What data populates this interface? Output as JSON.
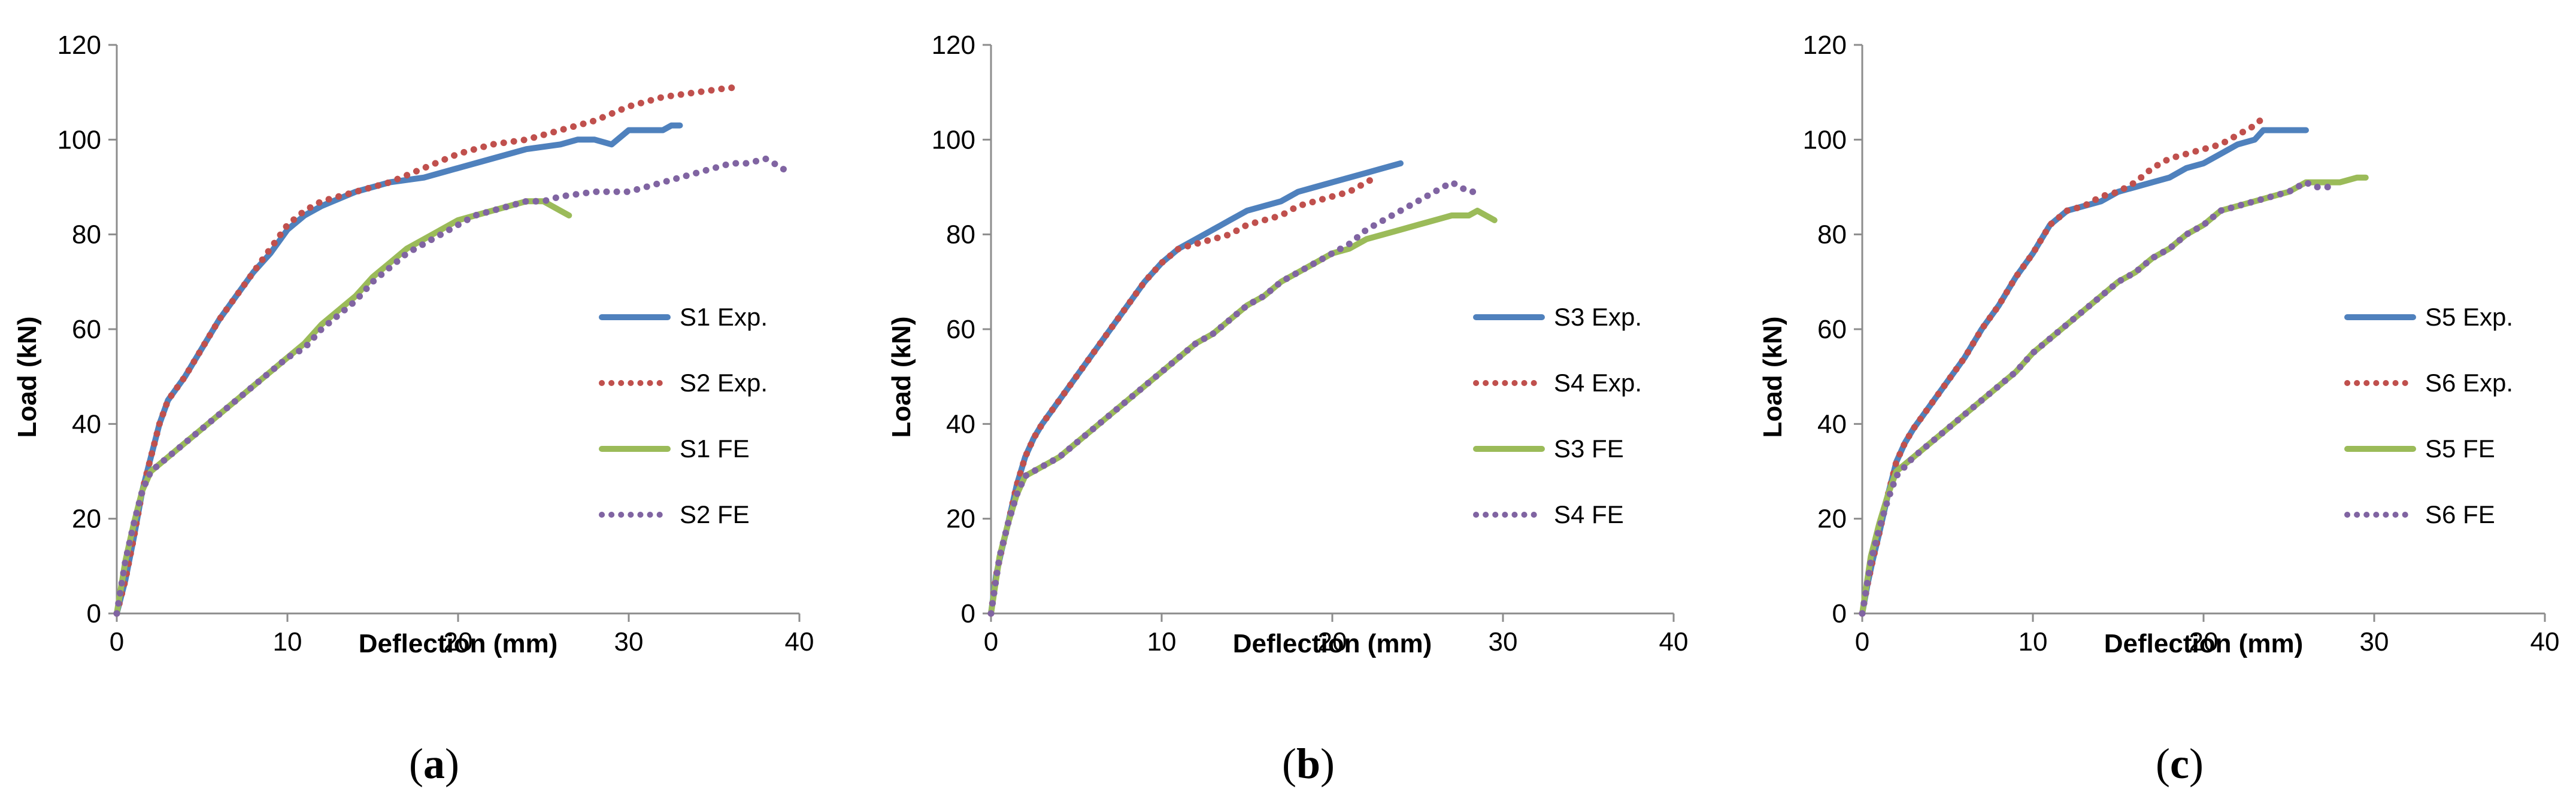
{
  "chart_data": [
    {
      "type": "line",
      "panel_label": "a",
      "xlabel": "Deflection (mm)",
      "ylabel": "Load (kN)",
      "xlim": [
        0,
        40
      ],
      "ylim": [
        0,
        120
      ],
      "xticks": [
        0,
        10,
        20,
        30,
        40
      ],
      "yticks": [
        0,
        20,
        40,
        60,
        80,
        100,
        120
      ],
      "grid": false,
      "legend_position": "right",
      "series": [
        {
          "name": "S1 Exp.",
          "style": "solid",
          "color": "#4F81BD",
          "x": [
            0,
            0.5,
            1,
            1.5,
            2,
            2.5,
            3,
            4,
            5,
            6,
            7,
            8,
            9,
            10,
            11,
            12,
            14,
            16,
            18,
            20,
            22,
            24,
            26,
            27,
            28,
            29,
            30,
            31,
            32,
            32.5,
            33
          ],
          "y": [
            0,
            7,
            16,
            26,
            33,
            40,
            45,
            50,
            56,
            62,
            67,
            72,
            76,
            81,
            84,
            86,
            89,
            91,
            92,
            94,
            96,
            98,
            99,
            100,
            100,
            99,
            102,
            102,
            102,
            103,
            103
          ]
        },
        {
          "name": "S2 Exp.",
          "style": "dotted",
          "color": "#C0504D",
          "x": [
            0,
            0.5,
            1,
            1.5,
            2,
            2.5,
            3,
            4,
            5,
            6,
            7,
            8,
            9,
            10,
            11,
            12,
            14,
            16,
            18,
            20,
            22,
            24,
            26,
            28,
            30,
            32,
            34,
            36,
            36.5
          ],
          "y": [
            0,
            7,
            16,
            26,
            33,
            40,
            45,
            50,
            56,
            62,
            67,
            72,
            77,
            82,
            85,
            87,
            89,
            91,
            94,
            97,
            99,
            100,
            102,
            104,
            107,
            109,
            110,
            111,
            110
          ]
        },
        {
          "name": "S1 FE",
          "style": "solid",
          "color": "#9BBB59",
          "x": [
            0,
            0.5,
            1,
            1.5,
            2,
            3,
            4,
            5,
            6,
            7,
            8,
            9,
            10,
            11,
            12,
            13,
            14,
            15,
            16,
            17,
            18,
            19,
            20,
            21,
            22,
            23,
            24,
            25,
            25.5,
            26,
            26.5
          ],
          "y": [
            0,
            11,
            19,
            26,
            30,
            33,
            36,
            39,
            42,
            45,
            48,
            51,
            54,
            57,
            61,
            64,
            67,
            71,
            74,
            77,
            79,
            81,
            83,
            84,
            85,
            86,
            87,
            87,
            86,
            85,
            84
          ]
        },
        {
          "name": "S2 FE",
          "style": "dotted",
          "color": "#8064A2",
          "x": [
            0,
            0.5,
            1,
            1.5,
            2,
            3,
            4,
            5,
            6,
            7,
            8,
            9,
            10,
            11,
            12,
            13,
            14,
            15,
            16,
            17,
            18,
            19,
            20,
            21,
            22,
            23,
            24,
            25,
            26,
            28,
            30,
            32,
            34,
            36,
            37,
            38,
            38.5,
            39,
            39.3
          ],
          "y": [
            0,
            11,
            19,
            26,
            30,
            33,
            36,
            39,
            42,
            45,
            48,
            51,
            54,
            56,
            60,
            63,
            66,
            70,
            73,
            76,
            78,
            80,
            82,
            84,
            85,
            86,
            87,
            87,
            88,
            89,
            89,
            91,
            93,
            95,
            95,
            96,
            95,
            94,
            93
          ]
        }
      ],
      "caption": {
        "open": "(",
        "letter": "a",
        "close": ")"
      }
    },
    {
      "type": "line",
      "panel_label": "b",
      "xlabel": "Deflection (mm)",
      "ylabel": "Load (kN)",
      "xlim": [
        0,
        40
      ],
      "ylim": [
        0,
        120
      ],
      "xticks": [
        0,
        10,
        20,
        30,
        40
      ],
      "yticks": [
        0,
        20,
        40,
        60,
        80,
        100,
        120
      ],
      "grid": false,
      "legend_position": "right",
      "series": [
        {
          "name": "S3 Exp.",
          "style": "solid",
          "color": "#4F81BD",
          "x": [
            0,
            0.3,
            0.6,
            1,
            1.5,
            2,
            2.5,
            3,
            4,
            5,
            6,
            7,
            8,
            9,
            10,
            11,
            12,
            13,
            14,
            15,
            16,
            17,
            18,
            19,
            20,
            21,
            22,
            23,
            24
          ],
          "y": [
            0,
            8,
            13,
            19,
            27,
            33,
            37,
            40,
            45,
            50,
            55,
            60,
            65,
            70,
            74,
            77,
            79,
            81,
            83,
            85,
            86,
            87,
            89,
            90,
            91,
            92,
            93,
            94,
            95
          ]
        },
        {
          "name": "S4 Exp.",
          "style": "dotted",
          "color": "#C0504D",
          "x": [
            0,
            0.3,
            0.6,
            1,
            1.5,
            2,
            2.5,
            3,
            4,
            5,
            6,
            7,
            8,
            9,
            10,
            11,
            12,
            13,
            14,
            15,
            16,
            17,
            18,
            19,
            20,
            21,
            22,
            22.5
          ],
          "y": [
            0,
            8,
            13,
            19,
            27,
            33,
            37,
            40,
            45,
            50,
            55,
            60,
            65,
            70,
            74,
            77,
            78,
            79,
            80,
            82,
            83,
            84,
            86,
            87,
            88,
            89,
            91,
            92
          ]
        },
        {
          "name": "S3 FE",
          "style": "solid",
          "color": "#9BBB59",
          "x": [
            0,
            0.5,
            1,
            1.5,
            2,
            3,
            4,
            5,
            6,
            7,
            8,
            9,
            10,
            11,
            12,
            13,
            14,
            15,
            16,
            17,
            18,
            19,
            20,
            21,
            22,
            23,
            24,
            25,
            26,
            27,
            28,
            28.5,
            29,
            29.5
          ],
          "y": [
            0,
            12,
            19,
            25,
            29,
            31,
            33,
            36,
            39,
            42,
            45,
            48,
            51,
            54,
            57,
            59,
            62,
            65,
            67,
            70,
            72,
            74,
            76,
            77,
            79,
            80,
            81,
            82,
            83,
            84,
            84,
            85,
            84,
            83
          ]
        },
        {
          "name": "S4 FE",
          "style": "dotted",
          "color": "#8064A2",
          "x": [
            0,
            0.5,
            1,
            1.5,
            2,
            3,
            4,
            5,
            6,
            7,
            8,
            9,
            10,
            11,
            12,
            13,
            14,
            15,
            16,
            17,
            18,
            19,
            20,
            21,
            22,
            23,
            24,
            25,
            26,
            27,
            27.5,
            28,
            28.5
          ],
          "y": [
            0,
            12,
            19,
            25,
            29,
            31,
            33,
            36,
            39,
            42,
            45,
            48,
            51,
            54,
            57,
            59,
            62,
            65,
            67,
            70,
            72,
            74,
            76,
            78,
            81,
            83,
            85,
            87,
            89,
            91,
            90,
            89,
            89
          ]
        }
      ],
      "caption": {
        "open": "(",
        "letter": "b",
        "close": ")"
      }
    },
    {
      "type": "line",
      "panel_label": "c",
      "xlabel": "Deflection (mm)",
      "ylabel": "Load (kN)",
      "xlim": [
        0,
        40
      ],
      "ylim": [
        0,
        120
      ],
      "xticks": [
        0,
        10,
        20,
        30,
        40
      ],
      "yticks": [
        0,
        20,
        40,
        60,
        80,
        100,
        120
      ],
      "grid": false,
      "legend_position": "right",
      "series": [
        {
          "name": "S5 Exp.",
          "style": "solid",
          "color": "#4F81BD",
          "x": [
            0,
            0.3,
            0.6,
            1,
            1.5,
            2,
            2.5,
            3,
            4,
            5,
            6,
            7,
            8,
            9,
            10,
            11,
            12,
            13,
            14,
            15,
            16,
            17,
            18,
            19,
            20,
            21,
            22,
            23,
            23.5,
            24,
            25,
            26
          ],
          "y": [
            0,
            6,
            11,
            17,
            25,
            32,
            36,
            39,
            44,
            49,
            54,
            60,
            65,
            71,
            76,
            82,
            85,
            86,
            87,
            89,
            90,
            91,
            92,
            94,
            95,
            97,
            99,
            100,
            102,
            102,
            102,
            102
          ]
        },
        {
          "name": "S6 Exp.",
          "style": "dotted",
          "color": "#C0504D",
          "x": [
            0,
            0.3,
            0.6,
            1,
            1.5,
            2,
            2.5,
            3,
            4,
            5,
            6,
            7,
            8,
            9,
            10,
            11,
            12,
            13,
            14,
            15,
            16,
            17,
            18,
            19,
            20,
            21,
            22,
            23,
            23.3
          ],
          "y": [
            0,
            6,
            11,
            17,
            25,
            32,
            36,
            39,
            44,
            49,
            54,
            60,
            65,
            71,
            76,
            82,
            85,
            86,
            88,
            89,
            91,
            94,
            96,
            97,
            98,
            99,
            101,
            103,
            104
          ]
        },
        {
          "name": "S5 FE",
          "style": "solid",
          "color": "#9BBB59",
          "x": [
            0,
            0.5,
            1,
            1.5,
            2,
            3,
            4,
            5,
            6,
            7,
            8,
            9,
            10,
            11,
            12,
            13,
            14,
            15,
            16,
            17,
            18,
            19,
            20,
            21,
            22,
            23,
            24,
            25,
            26,
            27,
            28,
            29,
            29.5
          ],
          "y": [
            0,
            12,
            19,
            25,
            30,
            33,
            36,
            39,
            42,
            45,
            48,
            51,
            55,
            58,
            61,
            64,
            67,
            70,
            72,
            75,
            77,
            80,
            82,
            85,
            86,
            87,
            88,
            89,
            91,
            91,
            91,
            92,
            92
          ]
        },
        {
          "name": "S6 FE",
          "style": "dotted",
          "color": "#8064A2",
          "x": [
            0,
            0.5,
            1,
            1.5,
            2,
            3,
            4,
            5,
            6,
            7,
            8,
            9,
            10,
            11,
            12,
            13,
            14,
            15,
            16,
            17,
            18,
            19,
            20,
            21,
            22,
            23,
            24,
            25,
            26,
            26.5,
            27,
            27.5
          ],
          "y": [
            0,
            11,
            18,
            24,
            29,
            33,
            36,
            39,
            42,
            45,
            48,
            51,
            55,
            58,
            61,
            64,
            67,
            70,
            72,
            75,
            77,
            80,
            82,
            85,
            86,
            87,
            88,
            89,
            91,
            90,
            90,
            90
          ]
        }
      ],
      "caption": {
        "open": "(",
        "letter": "c",
        "close": ")"
      }
    }
  ]
}
